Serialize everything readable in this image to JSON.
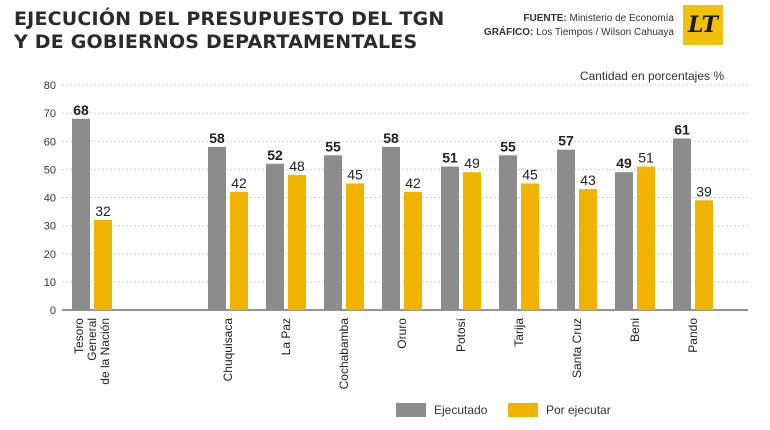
{
  "header": {
    "title_line1": "EJECUCIÓN DEL PRESUPUESTO DEL TGN",
    "title_line2": "Y DE GOBIERNOS DEPARTAMENTALES",
    "fuente_label": "FUENTE:",
    "fuente_value": "Ministerio de Economía",
    "grafico_label": "GRÁFICO:",
    "grafico_value": "Los Tiempos / Wilson Cahuaya",
    "logo_text": "LT"
  },
  "chart_data": {
    "type": "bar",
    "unit_label": "Cantidad en porcentajes %",
    "categories": [
      "Tesoro General de la Nación",
      "Chuquisaca",
      "La Paz",
      "Cochabamba",
      "Oruro",
      "Potosí",
      "Tarija",
      "Santa Cruz",
      "Beni",
      "Pando"
    ],
    "category_lines": [
      [
        "Tesoro",
        "General",
        "de la Nación"
      ],
      [
        "Chuquisaca"
      ],
      [
        "La Paz"
      ],
      [
        "Cochabamba"
      ],
      [
        "Oruro"
      ],
      [
        "Potosí"
      ],
      [
        "Tarija"
      ],
      [
        "Santa Cruz"
      ],
      [
        "Beni"
      ],
      [
        "Pando"
      ]
    ],
    "series": [
      {
        "name": "Ejecutado",
        "color": "#8c8c8c",
        "values": [
          68,
          58,
          52,
          55,
          58,
          51,
          55,
          57,
          49,
          61
        ]
      },
      {
        "name": "Por ejecutar",
        "color": "#f0b400",
        "values": [
          32,
          42,
          48,
          45,
          42,
          49,
          45,
          43,
          51,
          39
        ]
      }
    ],
    "ylim": [
      0,
      80
    ],
    "yticks": [
      0,
      10,
      20,
      30,
      40,
      50,
      60,
      70,
      80
    ],
    "grid": true,
    "legend_position": "bottom"
  }
}
